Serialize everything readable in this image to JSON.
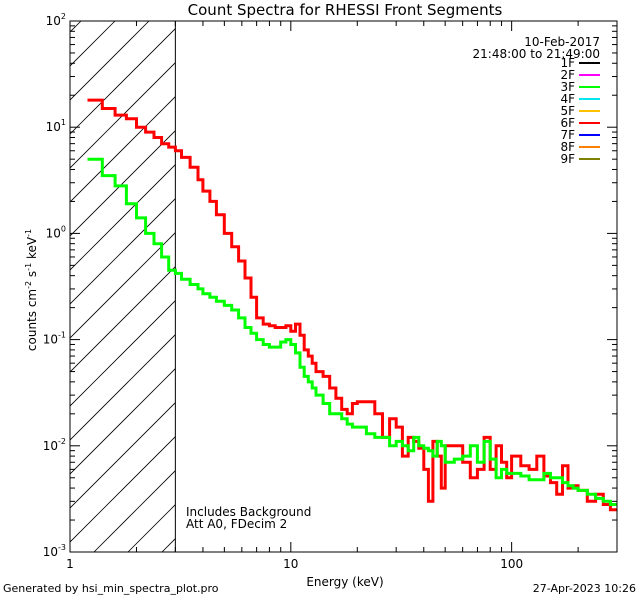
{
  "chart_data": {
    "type": "line",
    "title": "Count Spectra for RHESSI Front Segments",
    "xlabel": "Energy (keV)",
    "ylabel": "counts cm^-2 s^-1 keV^-1",
    "ylabel_parts": {
      "a": "counts cm",
      "b": "-2",
      "c": " s",
      "d": "-1",
      "e": " keV",
      "f": "-1"
    },
    "xscale": "log",
    "yscale": "log",
    "xlim": [
      1,
      300
    ],
    "ylim": [
      0.001,
      100
    ],
    "x_ticks": [
      {
        "value": 1,
        "label": "1"
      },
      {
        "value": 10,
        "label": "10"
      },
      {
        "value": 100,
        "label": "100"
      }
    ],
    "y_ticks": [
      {
        "value": 0.001,
        "base": "10",
        "exp": "-3"
      },
      {
        "value": 0.01,
        "base": "10",
        "exp": "-2"
      },
      {
        "value": 0.1,
        "base": "10",
        "exp": "-1"
      },
      {
        "value": 1,
        "base": "10",
        "exp": "0"
      },
      {
        "value": 10,
        "base": "10",
        "exp": "1"
      },
      {
        "value": 100,
        "base": "10",
        "exp": "2"
      }
    ],
    "hatch_region_kev": [
      1,
      3
    ],
    "date": "10-Feb-2017",
    "time_range": "21:48:00 to 21:49:00",
    "notes": [
      "Includes Background",
      "Att A0, FDecim 2"
    ],
    "legend": [
      {
        "name": "1F",
        "color": "#000000"
      },
      {
        "name": "2F",
        "color": "#ff00ff"
      },
      {
        "name": "3F",
        "color": "#00ff00"
      },
      {
        "name": "4F",
        "color": "#00e5ee"
      },
      {
        "name": "5F",
        "color": "#ffc000"
      },
      {
        "name": "6F",
        "color": "#ff0000"
      },
      {
        "name": "7F",
        "color": "#0000ff"
      },
      {
        "name": "8F",
        "color": "#ff8000"
      },
      {
        "name": "9F",
        "color": "#808000"
      }
    ],
    "series": [
      {
        "name": "6F",
        "color": "#ff0000",
        "step": true,
        "x": [
          1.2,
          1.4,
          1.6,
          1.8,
          2.0,
          2.2,
          2.4,
          2.6,
          2.8,
          3.0,
          3.2,
          3.5,
          3.8,
          4.0,
          4.3,
          4.6,
          5.0,
          5.4,
          5.8,
          6.2,
          6.6,
          7.0,
          7.5,
          8.0,
          8.5,
          9.0,
          9.5,
          10.0,
          10.5,
          11.0,
          11.5,
          12.0,
          12.5,
          13.0,
          14.0,
          15.0,
          16.0,
          17.0,
          18.0,
          19.0,
          20.0,
          22.0,
          24.0,
          26.0,
          28.0,
          30.0,
          32.0,
          34.0,
          36.0,
          38.0,
          40.0,
          42.0,
          44.0,
          46.0,
          48.0,
          50.0,
          55.0,
          60.0,
          65.0,
          70.0,
          75.0,
          80.0,
          85.0,
          90.0,
          95.0,
          100.0,
          110.0,
          120.0,
          130.0,
          140.0,
          150.0,
          160.0,
          170.0,
          180.0,
          190.0,
          200.0,
          220.0,
          240.0,
          260.0,
          280.0,
          300.0
        ],
        "y": [
          18,
          15,
          13,
          12,
          10,
          9,
          8,
          7,
          6.5,
          6,
          5.2,
          4.2,
          3.2,
          2.5,
          2.0,
          1.5,
          1.0,
          0.75,
          0.55,
          0.38,
          0.25,
          0.16,
          0.14,
          0.135,
          0.13,
          0.13,
          0.135,
          0.12,
          0.14,
          0.11,
          0.08,
          0.07,
          0.06,
          0.05,
          0.045,
          0.035,
          0.028,
          0.022,
          0.02,
          0.025,
          0.026,
          0.026,
          0.02,
          0.012,
          0.018,
          0.015,
          0.008,
          0.012,
          0.011,
          0.0095,
          0.006,
          0.003,
          0.011,
          0.008,
          0.004,
          0.01,
          0.01,
          0.007,
          0.005,
          0.006,
          0.012,
          0.006,
          0.01,
          0.007,
          0.005,
          0.008,
          0.0065,
          0.006,
          0.008,
          0.0052,
          0.0045,
          0.0035,
          0.0065,
          0.004,
          0.0042,
          0.0038,
          0.003,
          0.0035,
          0.0028,
          0.0025,
          0.0025
        ]
      },
      {
        "name": "3F",
        "color": "#00ff00",
        "step": true,
        "x": [
          1.2,
          1.4,
          1.6,
          1.8,
          2.0,
          2.2,
          2.4,
          2.6,
          2.8,
          3.0,
          3.2,
          3.5,
          3.8,
          4.0,
          4.3,
          4.6,
          5.0,
          5.4,
          5.8,
          6.2,
          6.6,
          7.0,
          7.5,
          8.0,
          8.5,
          9.0,
          9.5,
          10.0,
          10.5,
          11.0,
          11.5,
          12.0,
          12.5,
          13.0,
          14.0,
          15.0,
          16.0,
          17.0,
          18.0,
          19.0,
          20.0,
          22.0,
          24.0,
          26.0,
          28.0,
          30.0,
          32.0,
          34.0,
          36.0,
          38.0,
          40.0,
          42.0,
          44.0,
          46.0,
          48.0,
          50.0,
          55.0,
          60.0,
          65.0,
          70.0,
          75.0,
          80.0,
          85.0,
          90.0,
          95.0,
          100.0,
          110.0,
          120.0,
          130.0,
          140.0,
          150.0,
          160.0,
          170.0,
          180.0,
          190.0,
          200.0,
          220.0,
          240.0,
          260.0,
          280.0,
          300.0
        ],
        "y": [
          5,
          3.5,
          2.8,
          1.9,
          1.4,
          1.0,
          0.8,
          0.6,
          0.45,
          0.42,
          0.37,
          0.33,
          0.3,
          0.27,
          0.25,
          0.23,
          0.21,
          0.19,
          0.16,
          0.13,
          0.115,
          0.1,
          0.09,
          0.085,
          0.085,
          0.095,
          0.1,
          0.09,
          0.075,
          0.055,
          0.045,
          0.04,
          0.035,
          0.03,
          0.025,
          0.02,
          0.02,
          0.018,
          0.016,
          0.015,
          0.015,
          0.013,
          0.012,
          0.012,
          0.01,
          0.011,
          0.01,
          0.009,
          0.012,
          0.01,
          0.0095,
          0.009,
          0.008,
          0.011,
          0.01,
          0.007,
          0.0075,
          0.008,
          0.01,
          0.007,
          0.011,
          0.0075,
          0.005,
          0.006,
          0.0055,
          0.0055,
          0.0052,
          0.0048,
          0.0048,
          0.0055,
          0.005,
          0.005,
          0.0045,
          0.0042,
          0.004,
          0.0038,
          0.0035,
          0.0032,
          0.003,
          0.0028,
          0.0028
        ]
      }
    ]
  },
  "footer": {
    "generated_by": "Generated by hsi_min_spectra_plot.pro",
    "timestamp": "27-Apr-2023 10:26"
  }
}
